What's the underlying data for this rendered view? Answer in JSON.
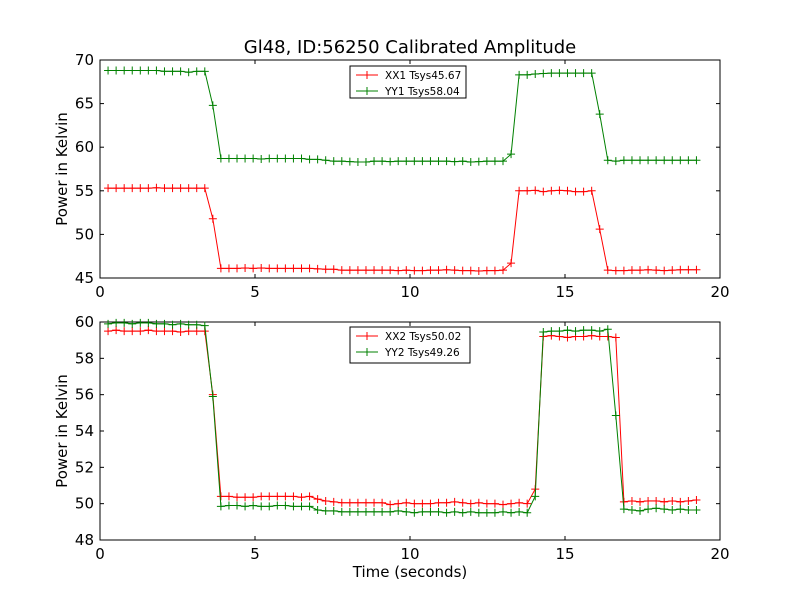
{
  "figure": {
    "title": "Gl48, ID:56250 Calibrated Amplitude"
  },
  "chart_data": [
    {
      "type": "line",
      "title": "Gl48, ID:56250 Calibrated Amplitude",
      "xlabel": "",
      "ylabel": "Power in Kelvin",
      "xlim": [
        0,
        20
      ],
      "ylim": [
        45,
        70
      ],
      "xticks": [
        0,
        5,
        10,
        15,
        20
      ],
      "yticks": [
        45,
        50,
        55,
        60,
        65,
        70
      ],
      "grid": false,
      "legend_position": "top-center",
      "x": [
        0.26,
        0.52,
        0.78,
        1.04,
        1.3,
        1.56,
        1.82,
        2.08,
        2.34,
        2.6,
        2.86,
        3.12,
        3.38,
        3.64,
        3.9,
        4.16,
        4.42,
        4.68,
        4.94,
        5.2,
        5.46,
        5.72,
        5.98,
        6.24,
        6.5,
        6.76,
        7.02,
        7.28,
        7.54,
        7.8,
        8.06,
        8.32,
        8.58,
        8.84,
        9.1,
        9.36,
        9.62,
        9.88,
        10.14,
        10.4,
        10.66,
        10.92,
        11.18,
        11.44,
        11.7,
        11.96,
        12.22,
        12.48,
        12.74,
        13.0,
        13.26,
        13.52,
        13.78,
        14.04,
        14.3,
        14.56,
        14.82,
        15.08,
        15.34,
        15.6,
        15.86,
        16.12,
        16.38,
        16.64,
        16.9,
        17.16,
        17.42,
        17.68,
        17.94,
        18.2,
        18.46,
        18.72,
        18.98,
        19.24
      ],
      "series": [
        {
          "name": "XX1 Tsys45.67",
          "color": "#ff0000",
          "values": [
            55.3,
            55.3,
            55.3,
            55.3,
            55.3,
            55.3,
            55.35,
            55.3,
            55.3,
            55.3,
            55.3,
            55.3,
            55.3,
            51.8,
            46.1,
            46.1,
            46.1,
            46.15,
            46.1,
            46.15,
            46.1,
            46.1,
            46.1,
            46.1,
            46.1,
            46.1,
            46.05,
            46.0,
            46.0,
            45.9,
            45.9,
            45.9,
            45.9,
            45.9,
            45.9,
            45.9,
            45.85,
            45.9,
            45.85,
            45.85,
            45.9,
            45.9,
            45.95,
            45.9,
            45.85,
            45.85,
            45.8,
            45.85,
            45.85,
            45.9,
            46.7,
            55.0,
            55.0,
            55.05,
            54.9,
            55.0,
            55.05,
            55.0,
            54.9,
            54.9,
            55.0,
            50.6,
            45.9,
            45.85,
            45.85,
            45.9,
            45.9,
            45.95,
            45.9,
            45.85,
            45.9,
            45.95,
            45.95,
            45.95
          ]
        },
        {
          "name": "YY1 Tsys58.04",
          "color": "#008000",
          "values": [
            68.8,
            68.8,
            68.8,
            68.8,
            68.8,
            68.8,
            68.8,
            68.7,
            68.7,
            68.7,
            68.6,
            68.7,
            68.7,
            64.8,
            58.7,
            58.7,
            58.7,
            58.7,
            58.7,
            58.65,
            58.7,
            58.7,
            58.7,
            58.7,
            58.7,
            58.6,
            58.6,
            58.5,
            58.4,
            58.4,
            58.35,
            58.3,
            58.3,
            58.4,
            58.4,
            58.35,
            58.4,
            58.4,
            58.4,
            58.4,
            58.4,
            58.4,
            58.4,
            58.35,
            58.4,
            58.3,
            58.35,
            58.4,
            58.4,
            58.4,
            59.2,
            68.3,
            68.3,
            68.4,
            68.45,
            68.5,
            68.5,
            68.5,
            68.5,
            68.5,
            68.5,
            63.8,
            58.5,
            58.4,
            58.5,
            58.5,
            58.5,
            58.5,
            58.5,
            58.5,
            58.5,
            58.5,
            58.5,
            58.5
          ]
        }
      ]
    },
    {
      "type": "line",
      "title": "",
      "xlabel": "Time (seconds)",
      "ylabel": "Power in Kelvin",
      "xlim": [
        0,
        20
      ],
      "ylim": [
        48,
        60
      ],
      "xticks": [
        0,
        5,
        10,
        15,
        20
      ],
      "yticks": [
        48,
        50,
        52,
        54,
        56,
        58,
        60
      ],
      "grid": false,
      "legend_position": "top-center",
      "x": [
        0.26,
        0.52,
        0.78,
        1.04,
        1.3,
        1.56,
        1.82,
        2.08,
        2.34,
        2.6,
        2.86,
        3.12,
        3.38,
        3.64,
        3.9,
        4.16,
        4.42,
        4.68,
        4.94,
        5.2,
        5.46,
        5.72,
        5.98,
        6.24,
        6.5,
        6.76,
        7.02,
        7.28,
        7.54,
        7.8,
        8.06,
        8.32,
        8.58,
        8.84,
        9.1,
        9.36,
        9.62,
        9.88,
        10.14,
        10.4,
        10.66,
        10.92,
        11.18,
        11.44,
        11.7,
        11.96,
        12.22,
        12.48,
        12.74,
        13.0,
        13.26,
        13.52,
        13.78,
        14.04,
        14.3,
        14.56,
        14.82,
        15.08,
        15.34,
        15.6,
        15.86,
        16.12,
        16.38,
        16.64,
        16.9,
        17.16,
        17.42,
        17.68,
        17.94,
        18.2,
        18.46,
        18.72,
        18.98,
        19.24
      ],
      "series": [
        {
          "name": "XX2 Tsys50.02",
          "color": "#ff0000",
          "values": [
            59.5,
            59.55,
            59.5,
            59.5,
            59.5,
            59.55,
            59.5,
            59.5,
            59.5,
            59.45,
            59.5,
            59.5,
            59.5,
            56.0,
            50.4,
            50.4,
            50.35,
            50.35,
            50.35,
            50.4,
            50.4,
            50.4,
            50.4,
            50.4,
            50.35,
            50.4,
            50.25,
            50.15,
            50.1,
            50.05,
            50.05,
            50.05,
            50.05,
            50.05,
            50.05,
            49.95,
            50.0,
            50.05,
            50.0,
            50.0,
            50.0,
            50.05,
            50.05,
            50.1,
            50.05,
            50.0,
            50.05,
            50.0,
            50.0,
            49.95,
            50.0,
            50.05,
            50.0,
            50.8,
            59.2,
            59.25,
            59.2,
            59.15,
            59.2,
            59.2,
            59.25,
            59.2,
            59.2,
            59.15,
            50.1,
            50.15,
            50.1,
            50.15,
            50.15,
            50.1,
            50.15,
            50.1,
            50.15,
            50.2
          ]
        },
        {
          "name": "YY2 Tsys49.26",
          "color": "#008000",
          "values": [
            59.9,
            59.95,
            59.95,
            59.9,
            59.95,
            59.95,
            59.9,
            59.9,
            59.85,
            59.9,
            59.85,
            59.85,
            59.8,
            55.9,
            49.85,
            49.9,
            49.9,
            49.85,
            49.9,
            49.85,
            49.85,
            49.9,
            49.9,
            49.85,
            49.85,
            49.85,
            49.65,
            49.6,
            49.6,
            49.55,
            49.55,
            49.55,
            49.55,
            49.55,
            49.55,
            49.55,
            49.6,
            49.55,
            49.5,
            49.55,
            49.55,
            49.55,
            49.5,
            49.55,
            49.5,
            49.55,
            49.5,
            49.5,
            49.5,
            49.55,
            49.5,
            49.55,
            49.5,
            50.4,
            59.45,
            59.5,
            59.5,
            59.55,
            59.5,
            59.55,
            59.55,
            59.5,
            59.6,
            54.85,
            49.7,
            49.65,
            49.6,
            49.7,
            49.75,
            49.7,
            49.65,
            49.7,
            49.65,
            49.65
          ]
        }
      ]
    }
  ]
}
